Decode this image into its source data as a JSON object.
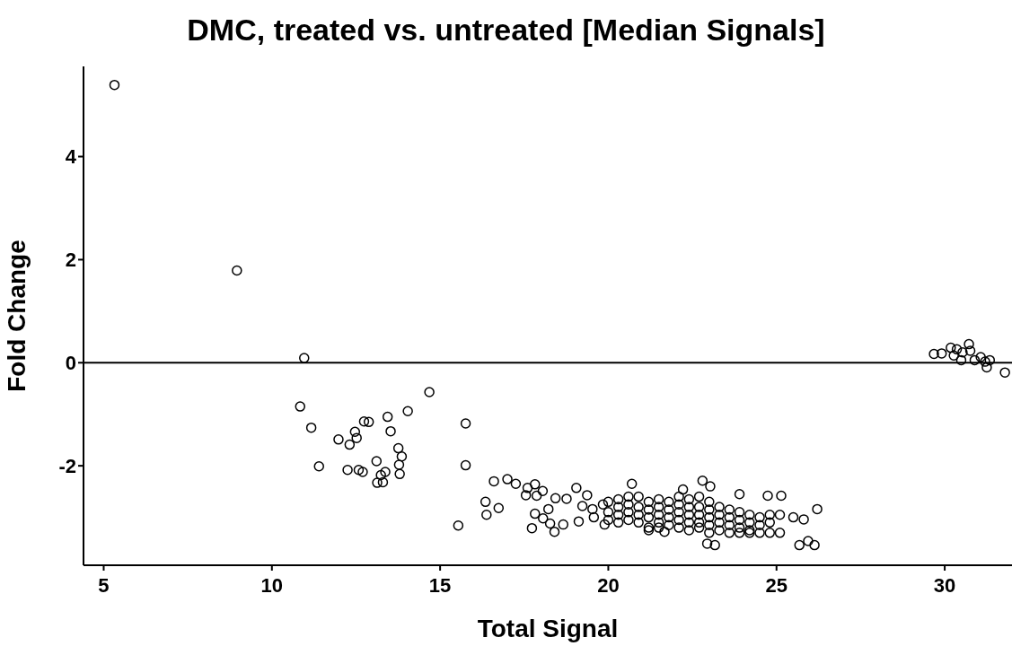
{
  "chart_data": {
    "type": "scatter",
    "title": "DMC, treated vs. untreated [Median Signals]",
    "xlabel": "Total Signal",
    "ylabel": "Fold Change",
    "xlim": [
      4.4,
      32
    ],
    "xticks": [
      5,
      10,
      15,
      20,
      25,
      30
    ],
    "ylim": [
      -3.93,
      5.75
    ],
    "yticks": [
      -2,
      0,
      2,
      4
    ],
    "grid": false,
    "legend": false,
    "marker": "circle",
    "ref_lines": [
      {
        "axis": "y",
        "value": 0,
        "color": "#000000"
      }
    ],
    "series": [
      {
        "color": "#000000",
        "x": [
          5.32,
          8.96,
          10.96,
          10.84,
          11.17,
          11.4,
          11.98,
          12.31,
          12.47,
          12.52,
          12.25,
          12.58,
          12.7,
          12.74,
          12.88,
          13.44,
          13.53,
          13.11,
          13.37,
          13.24,
          13.13,
          13.3,
          13.76,
          13.86,
          13.78,
          13.8,
          14.04,
          14.68,
          15.76,
          15.76,
          15.54,
          16.35,
          16.38,
          16.74,
          16.6,
          17.0,
          17.25,
          17.6,
          17.82,
          18.05,
          17.87,
          17.55,
          17.82,
          18.06,
          17.73,
          18.27,
          18.4,
          18.66,
          18.22,
          18.43,
          18.76,
          19.05,
          19.37,
          19.23,
          19.53,
          19.12,
          19.57,
          19.84,
          19.89,
          20.7,
          22.8,
          22.22,
          23.03,
          23.9,
          24.74,
          25.14,
          22.94,
          23.17,
          21.67,
          25.68,
          26.13,
          25.94,
          26.21,
          25.81,
          25.5,
          20.0,
          20.0,
          20.0,
          20.3,
          20.3,
          20.3,
          20.3,
          20.6,
          20.6,
          20.6,
          20.6,
          20.9,
          20.9,
          20.9,
          20.9,
          21.2,
          21.2,
          21.2,
          21.2,
          21.2,
          21.5,
          21.5,
          21.5,
          21.5,
          21.5,
          21.8,
          21.8,
          21.8,
          21.8,
          22.1,
          22.1,
          22.1,
          22.1,
          22.1,
          22.4,
          22.4,
          22.4,
          22.4,
          22.4,
          22.7,
          22.7,
          22.7,
          22.7,
          22.7,
          23.0,
          23.0,
          23.0,
          23.0,
          23.0,
          23.3,
          23.3,
          23.3,
          23.3,
          23.6,
          23.6,
          23.6,
          23.6,
          23.9,
          23.9,
          23.9,
          23.9,
          24.2,
          24.2,
          24.2,
          24.2,
          24.5,
          24.5,
          24.5,
          24.8,
          24.8,
          24.8,
          25.1,
          25.1,
          29.68,
          29.91,
          30.18,
          30.36,
          30.53,
          30.72,
          30.76,
          30.49,
          30.89,
          31.07,
          31.2,
          31.34,
          31.25,
          30.27,
          31.79
        ],
        "values": [
          5.39,
          1.79,
          0.09,
          -0.85,
          -1.26,
          -2.01,
          -1.49,
          -1.59,
          -1.34,
          -1.46,
          -2.08,
          -2.08,
          -2.12,
          -1.14,
          -1.15,
          -1.05,
          -1.33,
          -1.91,
          -2.12,
          -2.18,
          -2.33,
          -2.32,
          -1.66,
          -1.82,
          -1.98,
          -2.16,
          -0.94,
          -0.57,
          -1.18,
          -1.99,
          -3.16,
          -2.7,
          -2.95,
          -2.82,
          -2.3,
          -2.26,
          -2.35,
          -2.43,
          -2.36,
          -2.49,
          -2.58,
          -2.57,
          -2.93,
          -3.02,
          -3.21,
          -3.12,
          -3.28,
          -3.14,
          -2.84,
          -2.63,
          -2.64,
          -2.43,
          -2.57,
          -2.78,
          -2.84,
          -3.08,
          -3.0,
          -2.75,
          -3.14,
          -2.35,
          -2.29,
          -2.46,
          -2.4,
          -2.55,
          -2.58,
          -2.58,
          -3.51,
          -3.54,
          -3.28,
          -3.54,
          -3.54,
          -3.46,
          -2.84,
          -3.04,
          -3.0,
          -2.7,
          -2.9,
          -3.05,
          -2.65,
          -2.8,
          -2.95,
          -3.1,
          -2.6,
          -2.75,
          -2.9,
          -3.05,
          -2.6,
          -2.8,
          -2.95,
          -3.1,
          -2.7,
          -2.85,
          -3.0,
          -3.2,
          -3.25,
          -2.65,
          -2.8,
          -2.95,
          -3.1,
          -3.2,
          -2.7,
          -2.85,
          -3.0,
          -3.15,
          -2.6,
          -2.75,
          -2.9,
          -3.05,
          -3.2,
          -2.65,
          -2.8,
          -2.95,
          -3.1,
          -3.25,
          -2.6,
          -2.8,
          -2.95,
          -3.1,
          -3.2,
          -2.7,
          -2.85,
          -3.0,
          -3.15,
          -3.3,
          -2.8,
          -2.95,
          -3.1,
          -3.25,
          -2.85,
          -3.0,
          -3.15,
          -3.3,
          -2.9,
          -3.05,
          -3.2,
          -3.3,
          -2.95,
          -3.1,
          -3.25,
          -3.3,
          -3.0,
          -3.15,
          -3.3,
          -2.95,
          -3.1,
          -3.3,
          -2.95,
          -3.3,
          0.17,
          0.18,
          0.29,
          0.26,
          0.2,
          0.36,
          0.23,
          0.05,
          0.05,
          0.11,
          0.02,
          0.05,
          -0.09,
          0.14,
          -0.19
        ]
      }
    ]
  }
}
